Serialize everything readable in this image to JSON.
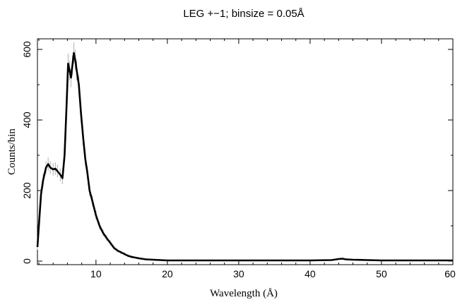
{
  "chart_data": {
    "type": "line",
    "title": "LEG +−1; binsize = 0.05Å",
    "xlabel": "Wavelength (Å)",
    "ylabel": "Counts/bin",
    "xlim": [
      1.8,
      60
    ],
    "ylim": [
      -10,
      630
    ],
    "xticks": [
      10,
      20,
      30,
      40,
      50,
      60
    ],
    "xtick_labels": [
      "10",
      "20",
      "30",
      "40",
      "50",
      "60"
    ],
    "yticks": [
      0,
      200,
      400,
      600
    ],
    "ytick_labels": [
      "0",
      "200",
      "400",
      "600"
    ],
    "grid": false,
    "series": [
      {
        "color": "#000000",
        "error_color": "#b0b0b0",
        "x": [
          1.8,
          2.0,
          2.3,
          2.6,
          3.0,
          3.3,
          3.6,
          4.0,
          4.3,
          4.6,
          5.0,
          5.3,
          5.6,
          5.9,
          6.1,
          6.3,
          6.5,
          6.7,
          6.9,
          7.1,
          7.3,
          7.6,
          7.9,
          8.2,
          8.5,
          8.8,
          9.1,
          9.5,
          10.0,
          10.5,
          11.0,
          11.5,
          12.0,
          12.5,
          13.0,
          13.5,
          14.0,
          14.5,
          15.0,
          16.0,
          17.0,
          18.0,
          19.0,
          20.0,
          22.0,
          25.0,
          30.0,
          35.0,
          40.0,
          43.0,
          44.0,
          44.5,
          45.0,
          46.0,
          48.0,
          50.0,
          55.0,
          60.0
        ],
        "y": [
          40,
          100,
          190,
          230,
          265,
          275,
          265,
          260,
          262,
          255,
          245,
          235,
          300,
          450,
          560,
          540,
          520,
          555,
          590,
          570,
          540,
          500,
          420,
          350,
          290,
          250,
          200,
          170,
          130,
          100,
          80,
          65,
          52,
          38,
          30,
          25,
          20,
          15,
          12,
          8,
          5,
          4,
          3,
          2,
          2,
          2,
          2,
          2,
          2,
          3,
          6,
          7,
          5,
          4,
          3,
          2,
          2,
          2
        ],
        "err": [
          8,
          12,
          16,
          18,
          18,
          19,
          18,
          18,
          18,
          18,
          18,
          17,
          20,
          25,
          28,
          28,
          27,
          28,
          30,
          29,
          28,
          26,
          24,
          22,
          20,
          18,
          16,
          15,
          13,
          11,
          10,
          9,
          8,
          7,
          6,
          5,
          5,
          4,
          4,
          3,
          3,
          2,
          2,
          2,
          2,
          2,
          2,
          2,
          2,
          2,
          3,
          3,
          3,
          2,
          2,
          2,
          2,
          2
        ]
      }
    ]
  }
}
